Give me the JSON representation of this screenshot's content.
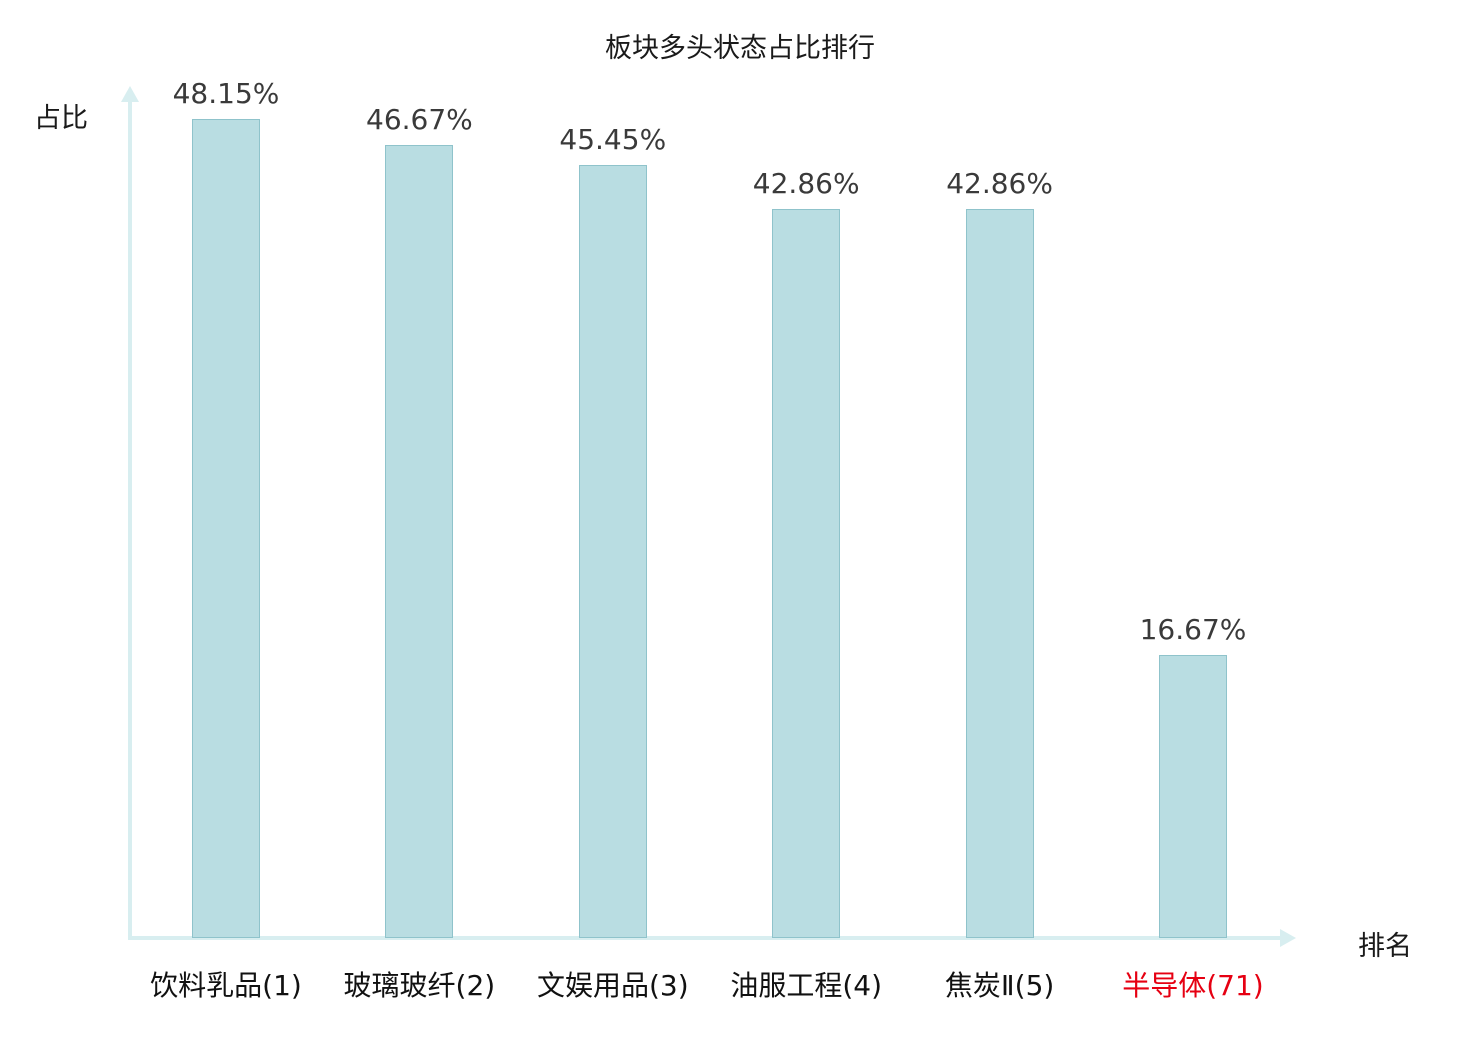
{
  "title": "板块多头状态占比排行",
  "axes": {
    "y_label": "占比",
    "x_label": "排名"
  },
  "chart_data": {
    "type": "bar",
    "title": "板块多头状态占比排行",
    "xlabel": "排名",
    "ylabel": "占比",
    "categories": [
      "饮料乳品(1)",
      "玻璃玻纤(2)",
      "文娱用品(3)",
      "油服工程(4)",
      "焦炭Ⅱ(5)",
      "半导体(71)"
    ],
    "values": [
      48.15,
      46.67,
      45.45,
      42.86,
      42.86,
      16.67
    ],
    "value_labels": [
      "48.15%",
      "46.67%",
      "45.45%",
      "42.86%",
      "42.86%",
      "16.67%"
    ],
    "ylim": [
      0,
      50
    ],
    "grid": false,
    "legend": false,
    "highlight_index": 5,
    "colors": {
      "bar_fill": "#b9dde2",
      "bar_border": "#8fc3cb",
      "axis": "#d8eef0",
      "value_label": "#3a3a3a",
      "category_label": "#111111",
      "highlight_label": "#e60012"
    }
  }
}
